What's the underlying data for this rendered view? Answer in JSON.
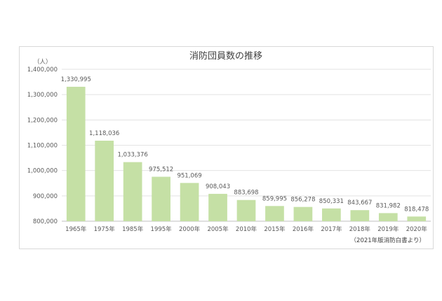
{
  "chart_data": {
    "type": "bar",
    "title": "消防団員数の推移",
    "y_unit": "（人）",
    "source_note": "（2021年版消防白書より）",
    "categories": [
      "1965年",
      "1975年",
      "1985年",
      "1995年",
      "2000年",
      "2005年",
      "2010年",
      "2015年",
      "2016年",
      "2017年",
      "2018年",
      "2019年",
      "2020年"
    ],
    "values": [
      1330995,
      1118036,
      1033376,
      975512,
      951069,
      908043,
      883698,
      859995,
      856278,
      850331,
      843667,
      831982,
      818478
    ],
    "value_labels": [
      "1,330,995",
      "1,118,036",
      "1,033,376",
      "975,512",
      "951,069",
      "908,043",
      "883,698",
      "859,995",
      "856,278",
      "850,331",
      "843,667",
      "831,982",
      "818,478"
    ],
    "ylim": [
      800000,
      1400000
    ],
    "y_ticks": [
      800000,
      900000,
      1000000,
      1100000,
      1200000,
      1300000,
      1400000
    ],
    "y_tick_labels": [
      "800,000",
      "900,000",
      "1,000,000",
      "1,100,000",
      "1,200,000",
      "1,300,000",
      "1,400,000"
    ],
    "grid": true,
    "bar_color": "#c5e0a5",
    "grid_color": "#e3e3e3"
  }
}
